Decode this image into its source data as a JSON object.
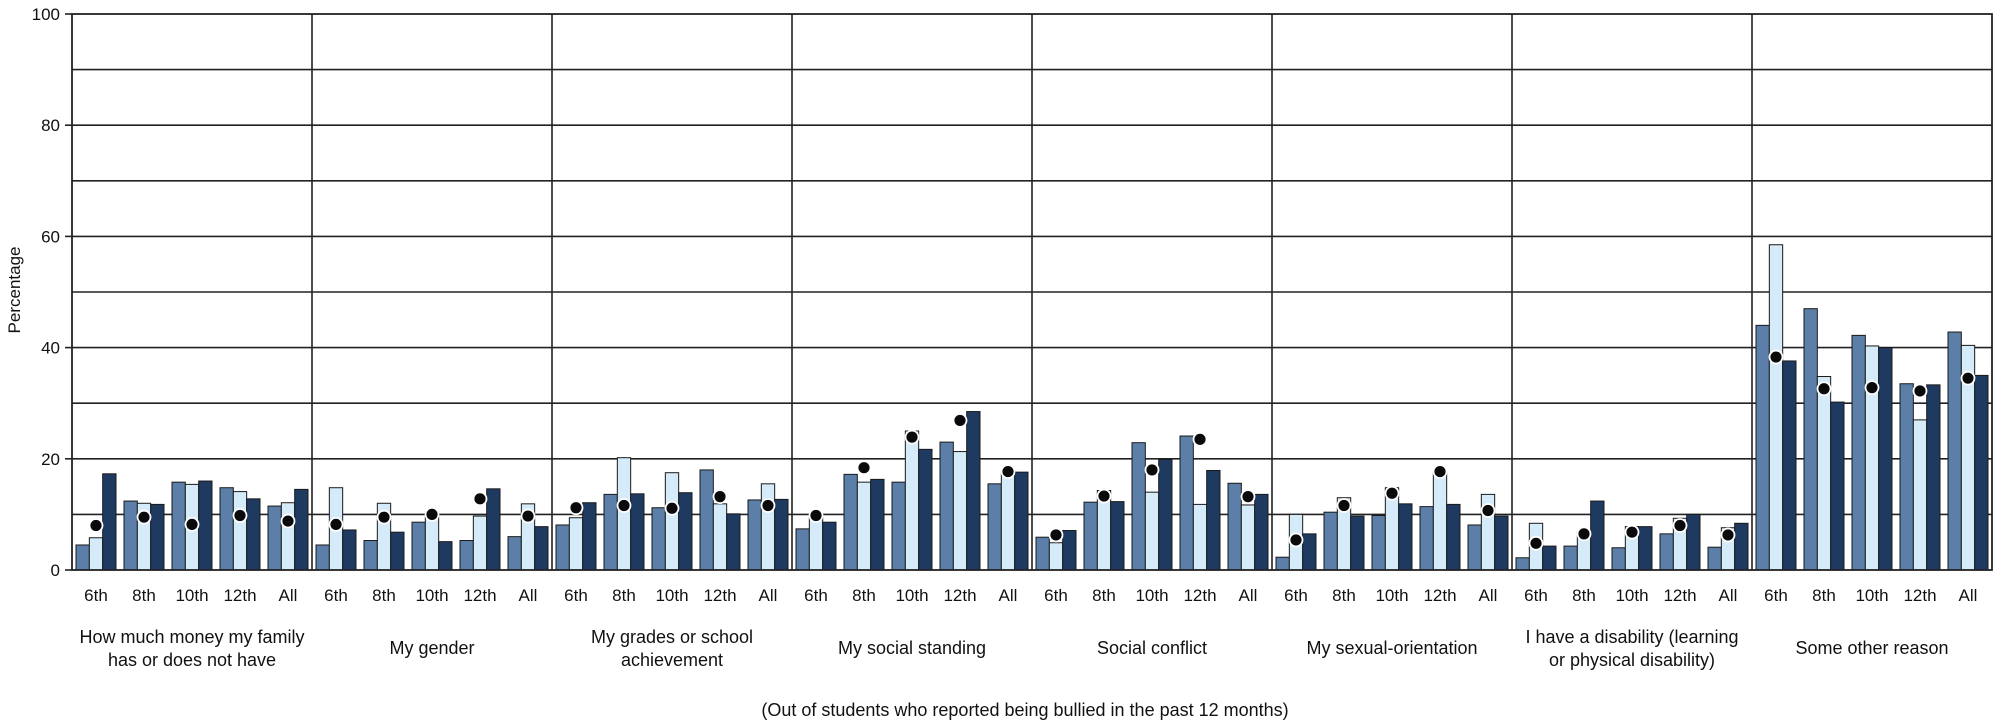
{
  "chart_data": {
    "type": "bar",
    "ylabel": "Percentage",
    "note": "(Out of students who reported being bullied in the past 12 months)",
    "ylim": [
      0,
      100
    ],
    "yticks": [
      0,
      20,
      40,
      60,
      80,
      100
    ],
    "minor_grid_step": 10,
    "grades": [
      "6th",
      "8th",
      "10th",
      "12th",
      "All"
    ],
    "series_colors": [
      "#5b7fa8",
      "#d6ebf9",
      "#1f3a61"
    ],
    "marker_color": "#0a0a0a",
    "groups": [
      {
        "label_lines": [
          "How much money my family",
          "has or does not have"
        ],
        "values": [
          [
            4.5,
            5.8,
            17.3
          ],
          [
            12.4,
            12.0,
            11.8
          ],
          [
            15.8,
            15.4,
            16.0
          ],
          [
            14.8,
            14.1,
            12.8
          ],
          [
            11.5,
            12.1,
            14.5
          ]
        ],
        "markers": [
          8,
          9.5,
          8.2,
          9.8,
          8.8
        ]
      },
      {
        "label_lines": [
          "My gender"
        ],
        "values": [
          [
            4.5,
            14.8,
            7.2
          ],
          [
            5.3,
            12.0,
            6.8
          ],
          [
            8.6,
            10.2,
            5.1
          ],
          [
            5.3,
            9.7,
            14.6
          ],
          [
            6.0,
            11.9,
            7.8
          ]
        ],
        "markers": [
          8.2,
          9.5,
          10.0,
          12.8,
          9.7
        ]
      },
      {
        "label_lines": [
          "My grades or school",
          "achievement"
        ],
        "values": [
          [
            8.1,
            9.4,
            12.1
          ],
          [
            13.6,
            20.2,
            13.7
          ],
          [
            11.2,
            17.5,
            13.9
          ],
          [
            18.0,
            11.9,
            10.1
          ],
          [
            12.6,
            15.5,
            12.7
          ]
        ],
        "markers": [
          11.2,
          11.6,
          11.1,
          13.2,
          11.6
        ]
      },
      {
        "label_lines": [
          "My social standing"
        ],
        "values": [
          [
            7.4,
            9.8,
            8.6
          ],
          [
            17.2,
            15.8,
            16.3
          ],
          [
            15.8,
            25.0,
            21.7
          ],
          [
            23.0,
            21.3,
            28.5
          ],
          [
            15.5,
            17.9,
            17.6
          ]
        ],
        "markers": [
          9.8,
          18.4,
          23.9,
          26.9,
          17.7
        ]
      },
      {
        "label_lines": [
          "Social conflict"
        ],
        "values": [
          [
            5.9,
            4.9,
            7.1
          ],
          [
            12.2,
            14.3,
            12.3
          ],
          [
            22.9,
            14.0,
            19.9
          ],
          [
            24.1,
            11.8,
            17.9
          ],
          [
            15.6,
            11.7,
            13.6
          ]
        ],
        "markers": [
          6.3,
          13.3,
          18.0,
          23.5,
          13.2
        ]
      },
      {
        "label_lines": [
          "My sexual-orientation"
        ],
        "values": [
          [
            2.3,
            10.0,
            6.5
          ],
          [
            10.4,
            13.0,
            9.7
          ],
          [
            9.8,
            14.8,
            11.9
          ],
          [
            11.4,
            17.6,
            11.8
          ],
          [
            8.1,
            13.6,
            9.7
          ]
        ],
        "markers": [
          5.4,
          11.6,
          13.8,
          17.7,
          10.7
        ]
      },
      {
        "label_lines": [
          "I have a disability (learning",
          "or physical disability)"
        ],
        "values": [
          [
            2.2,
            8.4,
            4.3
          ],
          [
            4.3,
            6.8,
            12.4
          ],
          [
            4.0,
            7.8,
            7.8
          ],
          [
            6.5,
            9.3,
            10.0
          ],
          [
            4.1,
            7.6,
            8.4
          ]
        ],
        "markers": [
          4.8,
          6.5,
          6.8,
          8.0,
          6.3
        ]
      },
      {
        "label_lines": [
          "Some other reason"
        ],
        "values": [
          [
            44.0,
            58.5,
            37.6
          ],
          [
            47.0,
            34.8,
            30.2
          ],
          [
            42.2,
            40.3,
            40.0
          ],
          [
            33.5,
            27.0,
            33.3
          ],
          [
            42.8,
            40.4,
            35.0
          ]
        ],
        "markers": [
          38.3,
          32.6,
          32.8,
          32.2,
          34.5
        ]
      }
    ]
  }
}
